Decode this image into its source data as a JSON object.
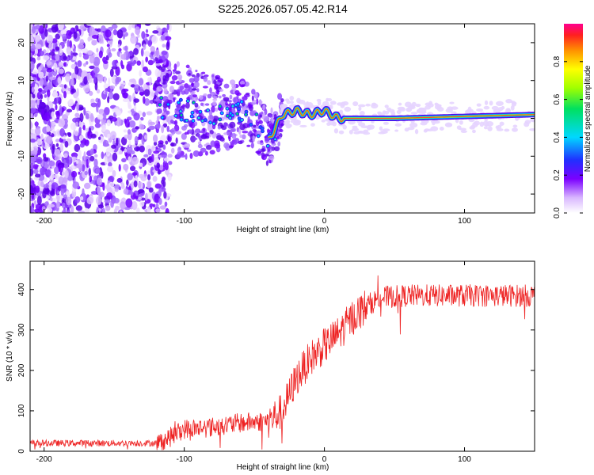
{
  "figure": {
    "title": "S225.2026.057.05.42.R14"
  },
  "chart_data": [
    {
      "type": "heatmap",
      "xlabel": "Height of straight line (km)",
      "ylabel": "Frequency (Hz)",
      "xlim": [
        -210,
        150
      ],
      "ylim": [
        -25,
        25
      ],
      "xticks": [
        -200,
        -100,
        0,
        100
      ],
      "yticks": [
        -20,
        -10,
        0,
        10,
        20
      ],
      "colorbar": {
        "label": "Normalized spectral amplitude",
        "range": [
          0,
          1
        ],
        "ticks": [
          0.0,
          0.2,
          0.4,
          0.6,
          0.8
        ]
      },
      "signal_track": {
        "description_points_x": [
          -120,
          -100,
          -80,
          -60,
          -50,
          -40,
          -30,
          -20,
          -10,
          0,
          10,
          20,
          50,
          100,
          150
        ],
        "frequency_hz": [
          3,
          2,
          1,
          2,
          0,
          -6,
          1,
          2,
          1,
          2,
          0,
          0,
          0,
          0.5,
          1
        ]
      }
    },
    {
      "type": "line",
      "xlabel": "Height of straight line (km)",
      "ylabel": "SNR (10 * v/v)",
      "xlim": [
        -210,
        150
      ],
      "ylim": [
        0,
        470
      ],
      "xticks": [
        -200,
        -100,
        0,
        100
      ],
      "yticks": [
        0,
        100,
        200,
        300,
        400
      ],
      "series": [
        {
          "name": "SNR",
          "color": "#ee2222",
          "envelope_x": [
            -210,
            -120,
            -110,
            -100,
            -80,
            -60,
            -40,
            -30,
            -20,
            -10,
            0,
            10,
            20,
            30,
            40,
            60,
            100,
            150
          ],
          "envelope_mean": [
            20,
            20,
            35,
            55,
            60,
            70,
            75,
            100,
            180,
            230,
            260,
            290,
            330,
            360,
            380,
            385,
            385,
            385
          ]
        }
      ]
    }
  ]
}
